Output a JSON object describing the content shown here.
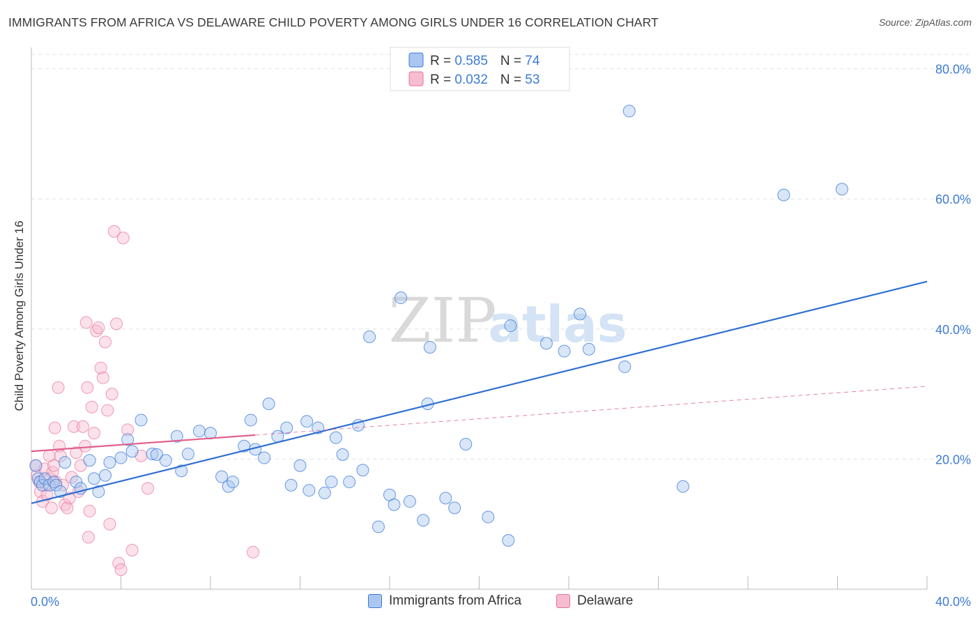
{
  "header": {
    "title": "IMMIGRANTS FROM AFRICA VS DELAWARE CHILD POVERTY AMONG GIRLS UNDER 16 CORRELATION CHART",
    "source": "Source: ZipAtlas.com"
  },
  "watermark": {
    "zip": "ZIP",
    "atlas": "atlas"
  },
  "colors": {
    "blue": "#3b78d8",
    "blue_fill": "#a9c7f0",
    "blue_line": "#2f6fd1",
    "pink": "#e8729a",
    "pink_fill": "#f6bdd0",
    "pink_line": "#e0608c",
    "axis_text": "#3d7bd4",
    "grid": "#e2e2e2"
  },
  "chart_data": {
    "type": "scatter",
    "title": "IMMIGRANTS FROM AFRICA VS DELAWARE CHILD POVERTY AMONG GIRLS UNDER 16 CORRELATION CHART",
    "xlabel": "",
    "ylabel": "Child Poverty Among Girls Under 16",
    "xlim": [
      0,
      40
    ],
    "ylim": [
      0,
      82
    ],
    "x_tick_labels": [
      "0.0%",
      "40.0%"
    ],
    "y_ticks": [
      20,
      40,
      60,
      80
    ],
    "y_tick_labels": [
      "20.0%",
      "40.0%",
      "60.0%",
      "80.0%"
    ],
    "legend": [
      {
        "r_label": "R = ",
        "r_value": "0.585",
        "n_label": "N = ",
        "n_value": "74"
      },
      {
        "r_label": "R = ",
        "r_value": "0.032",
        "n_label": "N = ",
        "n_value": "53"
      }
    ],
    "series": [
      {
        "name": "Immigrants from Africa",
        "color": "blue",
        "trend": {
          "x0": 0,
          "y0": 13.2,
          "x1": 40,
          "y1": 47.3,
          "style": "solid"
        },
        "points": [
          [
            0.2,
            19
          ],
          [
            0.3,
            17
          ],
          [
            0.4,
            16.5
          ],
          [
            0.5,
            16
          ],
          [
            0.6,
            17
          ],
          [
            0.8,
            16
          ],
          [
            1,
            16.5
          ],
          [
            1.1,
            16
          ],
          [
            1.3,
            15
          ],
          [
            1.5,
            19.5
          ],
          [
            2,
            16.5
          ],
          [
            2.2,
            15.5
          ],
          [
            2.6,
            19.8
          ],
          [
            2.8,
            17
          ],
          [
            3,
            15
          ],
          [
            3.3,
            17.5
          ],
          [
            3.5,
            19.5
          ],
          [
            4,
            20.2
          ],
          [
            4.3,
            23
          ],
          [
            4.5,
            21.2
          ],
          [
            4.9,
            26
          ],
          [
            5.4,
            20.8
          ],
          [
            5.6,
            20.7
          ],
          [
            6,
            19.8
          ],
          [
            6.7,
            18.2
          ],
          [
            6.5,
            23.5
          ],
          [
            7,
            20.8
          ],
          [
            7.5,
            24.3
          ],
          [
            8,
            24
          ],
          [
            8.5,
            17.3
          ],
          [
            8.8,
            15.8
          ],
          [
            9,
            16.5
          ],
          [
            9.5,
            22
          ],
          [
            9.8,
            26
          ],
          [
            10,
            21.5
          ],
          [
            10.4,
            20.2
          ],
          [
            10.6,
            28.5
          ],
          [
            11,
            23.5
          ],
          [
            11.4,
            24.8
          ],
          [
            11.6,
            16
          ],
          [
            12,
            19
          ],
          [
            12.3,
            25.8
          ],
          [
            12.4,
            15.2
          ],
          [
            12.8,
            24.8
          ],
          [
            13.1,
            14.8
          ],
          [
            13.4,
            16.5
          ],
          [
            13.6,
            23.3
          ],
          [
            13.9,
            20.7
          ],
          [
            14.2,
            16.5
          ],
          [
            14.6,
            25.2
          ],
          [
            14.8,
            18.3
          ],
          [
            15.1,
            38.8
          ],
          [
            15.5,
            9.6
          ],
          [
            16,
            14.5
          ],
          [
            16.2,
            13
          ],
          [
            16.5,
            44.8
          ],
          [
            16.9,
            13.5
          ],
          [
            17.5,
            10.6
          ],
          [
            17.7,
            28.5
          ],
          [
            17.8,
            37.2
          ],
          [
            18.5,
            14
          ],
          [
            18.9,
            12.5
          ],
          [
            19.4,
            22.3
          ],
          [
            20.4,
            11.1
          ],
          [
            21.3,
            7.5
          ],
          [
            21.4,
            40.5
          ],
          [
            23,
            37.8
          ],
          [
            23.8,
            36.6
          ],
          [
            24.5,
            42.3
          ],
          [
            24.9,
            36.9
          ],
          [
            26.5,
            34.2
          ],
          [
            26.7,
            73.5
          ],
          [
            29.1,
            15.8
          ],
          [
            33.6,
            60.6
          ],
          [
            36.2,
            61.5
          ]
        ]
      },
      {
        "name": "Delaware",
        "color": "pink",
        "trend": {
          "x0": 0,
          "y0": 21.2,
          "x1": 10,
          "y1": 23.7,
          "style": "solid",
          "ext_x1": 40,
          "ext_y1": 31.2,
          "ext_style": "dashed"
        },
        "points": [
          [
            0.2,
            19
          ],
          [
            0.25,
            17.5
          ],
          [
            0.35,
            16.5
          ],
          [
            0.4,
            15
          ],
          [
            0.5,
            13.5
          ],
          [
            0.6,
            18.5
          ],
          [
            0.65,
            16
          ],
          [
            0.7,
            14.5
          ],
          [
            0.8,
            20.5
          ],
          [
            0.85,
            17
          ],
          [
            0.9,
            12.5
          ],
          [
            0.95,
            18
          ],
          [
            1,
            19
          ],
          [
            1.05,
            24.8
          ],
          [
            1.1,
            16.5
          ],
          [
            1.2,
            31
          ],
          [
            1.25,
            22
          ],
          [
            1.3,
            20.5
          ],
          [
            1.4,
            16
          ],
          [
            1.5,
            13
          ],
          [
            1.6,
            12.5
          ],
          [
            1.7,
            14
          ],
          [
            1.8,
            17.2
          ],
          [
            1.9,
            25
          ],
          [
            2,
            21
          ],
          [
            2.1,
            15
          ],
          [
            2.2,
            19
          ],
          [
            2.3,
            25
          ],
          [
            2.4,
            22
          ],
          [
            2.45,
            41
          ],
          [
            2.5,
            31
          ],
          [
            2.55,
            8
          ],
          [
            2.6,
            12
          ],
          [
            2.7,
            28
          ],
          [
            2.8,
            24
          ],
          [
            2.9,
            39.7
          ],
          [
            3,
            40.2
          ],
          [
            3.1,
            34
          ],
          [
            3.2,
            32.5
          ],
          [
            3.3,
            38
          ],
          [
            3.4,
            27.5
          ],
          [
            3.5,
            10
          ],
          [
            3.6,
            30
          ],
          [
            3.7,
            55
          ],
          [
            3.8,
            40.8
          ],
          [
            3.9,
            4
          ],
          [
            4,
            3
          ],
          [
            4.1,
            54
          ],
          [
            4.3,
            24.5
          ],
          [
            4.5,
            6
          ],
          [
            4.9,
            20.5
          ],
          [
            5.2,
            15.5
          ],
          [
            9.9,
            5.7
          ]
        ]
      }
    ]
  },
  "bottom_legend": [
    {
      "label": "Immigrants from Africa",
      "color": "blue"
    },
    {
      "label": "Delaware",
      "color": "pink"
    }
  ]
}
